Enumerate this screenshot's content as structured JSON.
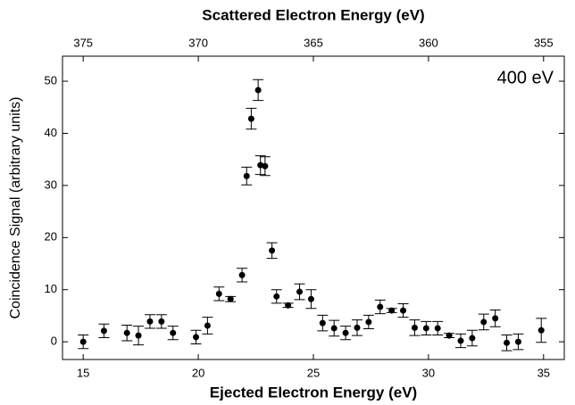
{
  "chart_data": {
    "type": "scatter",
    "title": "Scattered Electron Energy (eV)",
    "x_label": "Ejected Electron Energy (eV)",
    "y_label": "Coincidence Signal (arbitrary units)",
    "annotation": "400 eV",
    "color": "#000000",
    "x": [
      15.0,
      15.9,
      16.9,
      17.4,
      17.9,
      18.4,
      18.9,
      19.9,
      20.4,
      20.9,
      21.4,
      21.9,
      22.1,
      22.3,
      22.6,
      22.7,
      22.9,
      23.2,
      23.4,
      23.9,
      24.4,
      24.9,
      25.4,
      25.9,
      26.4,
      26.9,
      27.4,
      27.9,
      28.4,
      28.9,
      29.4,
      29.9,
      30.4,
      30.9,
      31.4,
      31.9,
      32.4,
      32.9,
      33.4,
      33.9,
      34.9
    ],
    "values": [
      0.0,
      2.1,
      1.7,
      1.2,
      3.9,
      3.9,
      1.7,
      0.9,
      3.1,
      9.2,
      8.2,
      12.8,
      31.8,
      42.8,
      48.3,
      33.9,
      33.7,
      17.5,
      8.7,
      7.0,
      9.6,
      8.2,
      3.6,
      2.6,
      1.7,
      2.7,
      3.8,
      6.7,
      6.0,
      6.0,
      2.7,
      2.6,
      2.6,
      1.2,
      0.2,
      0.7,
      3.8,
      4.5,
      -0.2,
      0.0,
      2.2
    ],
    "errors": [
      1.3,
      1.3,
      1.5,
      1.8,
      1.3,
      1.3,
      1.3,
      1.3,
      1.6,
      1.3,
      0.5,
      1.3,
      1.7,
      2.0,
      2.0,
      1.8,
      1.8,
      1.5,
      1.3,
      0.4,
      1.5,
      1.8,
      1.5,
      1.5,
      1.3,
      1.5,
      1.3,
      1.3,
      0.4,
      1.3,
      1.5,
      1.3,
      1.3,
      0.4,
      1.3,
      1.5,
      1.5,
      1.6,
      1.5,
      1.5,
      2.3
    ],
    "xlim": [
      14.1,
      35.9
    ],
    "xticks": [
      15,
      20,
      25,
      30,
      35
    ],
    "x2lim": [
      375.9,
      354.1
    ],
    "x2ticks": [
      375,
      370,
      365,
      360,
      355
    ],
    "ylim": [
      -3.4,
      54.8
    ],
    "yticks": [
      0,
      10,
      20,
      30,
      40,
      50
    ]
  }
}
